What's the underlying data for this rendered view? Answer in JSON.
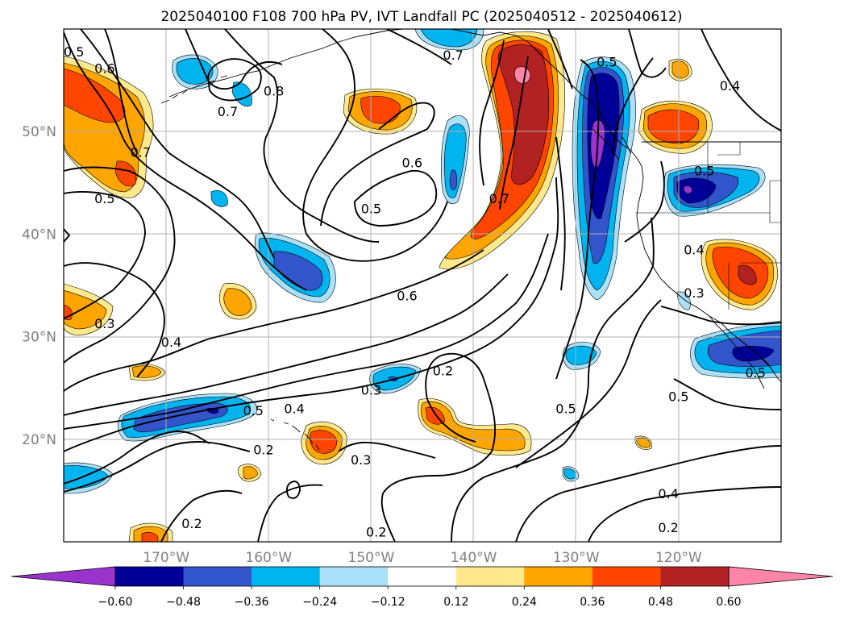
{
  "chart_data": {
    "type": "contour_map",
    "title": "2025040100 F108 700 hPa PV, IVT Landfall PC (2025040512 - 2025040612)",
    "x_axis": {
      "ticks": [
        "170°W",
        "160°W",
        "150°W",
        "140°W",
        "130°W",
        "120°W"
      ],
      "lon_values": [
        -170,
        -160,
        -150,
        -140,
        -130,
        -120
      ],
      "range": [
        -180,
        -110
      ]
    },
    "y_axis": {
      "ticks": [
        "20°N",
        "30°N",
        "40°N",
        "50°N"
      ],
      "lat_values": [
        20,
        30,
        40,
        50
      ],
      "range": [
        10,
        60
      ]
    },
    "grid": true,
    "colorbar": {
      "orientation": "horizontal",
      "extend": "both",
      "boundaries": [
        -0.6,
        -0.48,
        -0.36,
        -0.24,
        -0.12,
        0.12,
        0.24,
        0.36,
        0.48,
        0.6
      ],
      "tick_labels": [
        "−0.60",
        "−0.48",
        "−0.36",
        "−0.24",
        "−0.12",
        "0.12",
        "0.24",
        "0.36",
        "0.48",
        "0.60"
      ],
      "colors": [
        "#9933cc",
        "#000099",
        "#3355cc",
        "#00b4f0",
        "#aae0f8",
        "#ffffff",
        "#ffe98c",
        "#ffa500",
        "#ff4500",
        "#b22222",
        "#ff85a8"
      ]
    },
    "contour_labels": [
      {
        "text": "0.5",
        "lon": -179,
        "lat": 57.8
      },
      {
        "text": "0.6",
        "lon": -176,
        "lat": 56.2
      },
      {
        "text": "0.8",
        "lon": -159.5,
        "lat": 54
      },
      {
        "text": "0.7",
        "lon": -142,
        "lat": 57.5
      },
      {
        "text": "0.7",
        "lon": -164,
        "lat": 52
      },
      {
        "text": "0.5",
        "lon": -127,
        "lat": 56.8
      },
      {
        "text": "0.4",
        "lon": -115,
        "lat": 54.5
      },
      {
        "text": "0.7",
        "lon": -172.5,
        "lat": 48
      },
      {
        "text": "0.5",
        "lon": -176,
        "lat": 43.5
      },
      {
        "text": "0.6",
        "lon": -146,
        "lat": 47
      },
      {
        "text": "0.5",
        "lon": -150,
        "lat": 42.5
      },
      {
        "text": "0.7",
        "lon": -137.5,
        "lat": 43.5
      },
      {
        "text": "0.5",
        "lon": -117.5,
        "lat": 46.2
      },
      {
        "text": "0.4",
        "lon": -118.5,
        "lat": 38.5
      },
      {
        "text": "0.6",
        "lon": -146.5,
        "lat": 34
      },
      {
        "text": "0.3",
        "lon": -118.5,
        "lat": 34.3
      },
      {
        "text": "0.3",
        "lon": -176,
        "lat": 31.3
      },
      {
        "text": "0.4",
        "lon": -169.5,
        "lat": 29.5
      },
      {
        "text": "0.2",
        "lon": -143,
        "lat": 26.7
      },
      {
        "text": "0.3",
        "lon": -150,
        "lat": 24.8
      },
      {
        "text": "0.5",
        "lon": -120,
        "lat": 24.2
      },
      {
        "text": "0.5",
        "lon": -112.5,
        "lat": 26.5
      },
      {
        "text": "0.5",
        "lon": -161.5,
        "lat": 22.8
      },
      {
        "text": "0.4",
        "lon": -157.5,
        "lat": 23
      },
      {
        "text": "0.5",
        "lon": -131,
        "lat": 23
      },
      {
        "text": "0.2",
        "lon": -160.5,
        "lat": 19
      },
      {
        "text": "0.3",
        "lon": -151,
        "lat": 18
      },
      {
        "text": "0.4",
        "lon": -121,
        "lat": 14.7
      },
      {
        "text": "0.2",
        "lon": -167.5,
        "lat": 11.8
      },
      {
        "text": "0.2",
        "lon": -149.5,
        "lat": 11
      },
      {
        "text": "0.2",
        "lon": -121,
        "lat": 11.4
      }
    ]
  },
  "colors": {
    "frame": "#000000",
    "grid": "#b0b0b0",
    "tick_label": "#808080",
    "contour": "#000000"
  }
}
